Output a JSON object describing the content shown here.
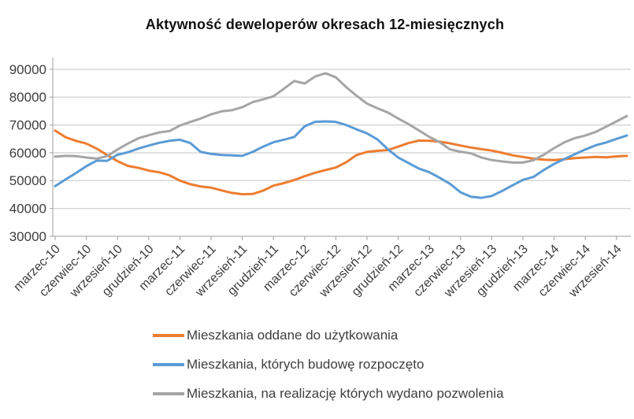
{
  "colors": {
    "axis": "#9f9f9f",
    "gridline": "#c6c6c6",
    "label_text": "#3d3d3d",
    "title_text": "#111111"
  },
  "chart_data": {
    "type": "line",
    "title": "Aktywność deweloperów okresach 12-miesięcznych",
    "x_start": "marzec-10",
    "x_unit": "month",
    "x_tick_every_months": 3,
    "x_tick_labels": [
      "marzec-10",
      "czerwiec-10",
      "wrzesień-10",
      "grudzień-10",
      "marzec-11",
      "czerwiec-11",
      "wrzesień-11",
      "grudzień-11",
      "marzec-12",
      "czerwiec-12",
      "wrzesień-12",
      "grudzień-12",
      "marzec-13",
      "czerwiec-13",
      "wrzesień-13",
      "grudzień-13",
      "marzec-14",
      "czerwiec-14",
      "wrzesień-14"
    ],
    "y_ticks": [
      30000,
      40000,
      50000,
      60000,
      70000,
      80000,
      90000
    ],
    "ylim": [
      30000,
      90000
    ],
    "grid": "horizontal",
    "legend_position": "bottom-left",
    "series": [
      {
        "name": "Mieszkania oddane do użytkowania",
        "color": "#ED7D31",
        "values": [
          68000,
          65600,
          64300,
          63300,
          61500,
          59200,
          57000,
          55300,
          54600,
          53600,
          53000,
          51900,
          50000,
          48700,
          47900,
          47500,
          46500,
          45600,
          45100,
          45200,
          46400,
          48200,
          49100,
          50200,
          51600,
          52800,
          53800,
          54700,
          56600,
          59200,
          60300,
          60700,
          61000,
          62200,
          63500,
          64400,
          64300,
          64000,
          63400,
          62600,
          61900,
          61300,
          60800,
          60000,
          59100,
          58500,
          57900,
          57500,
          57400,
          57700,
          58100,
          58300,
          58500,
          58400,
          58700,
          58900
        ]
      },
      {
        "name": "Mieszkania, których budowę rozpoczęto",
        "color": "#5B9BD5",
        "values": [
          48000,
          50400,
          52700,
          55200,
          57200,
          57100,
          59300,
          60200,
          61500,
          62600,
          63600,
          64300,
          64700,
          63500,
          60300,
          59600,
          59200,
          59100,
          58900,
          60300,
          62200,
          63800,
          64700,
          65700,
          69500,
          71100,
          71300,
          71100,
          70000,
          68400,
          67000,
          64800,
          61300,
          58300,
          56300,
          54300,
          53000,
          51000,
          48800,
          45800,
          44200,
          43800,
          44500,
          46300,
          48300,
          50300,
          51300,
          53800,
          56000,
          57800,
          59500,
          61200,
          62700,
          63700,
          65000,
          66200
        ]
      },
      {
        "name": "Mieszkania, na realizację których wydano pozwolenia",
        "color": "#A5A5A5",
        "values": [
          58600,
          58900,
          58800,
          58300,
          57900,
          58800,
          61200,
          63300,
          65200,
          66300,
          67300,
          67800,
          69800,
          71100,
          72300,
          73800,
          74900,
          75300,
          76400,
          78200,
          79200,
          80300,
          83000,
          85800,
          84900,
          87400,
          88600,
          87100,
          83600,
          80500,
          77700,
          76000,
          74500,
          72300,
          70300,
          68000,
          65700,
          63800,
          61200,
          60400,
          59800,
          58300,
          57400,
          56900,
          56500,
          56500,
          57300,
          59300,
          61700,
          63800,
          65300,
          66200,
          67500,
          69400,
          71300,
          73200
        ]
      }
    ]
  }
}
